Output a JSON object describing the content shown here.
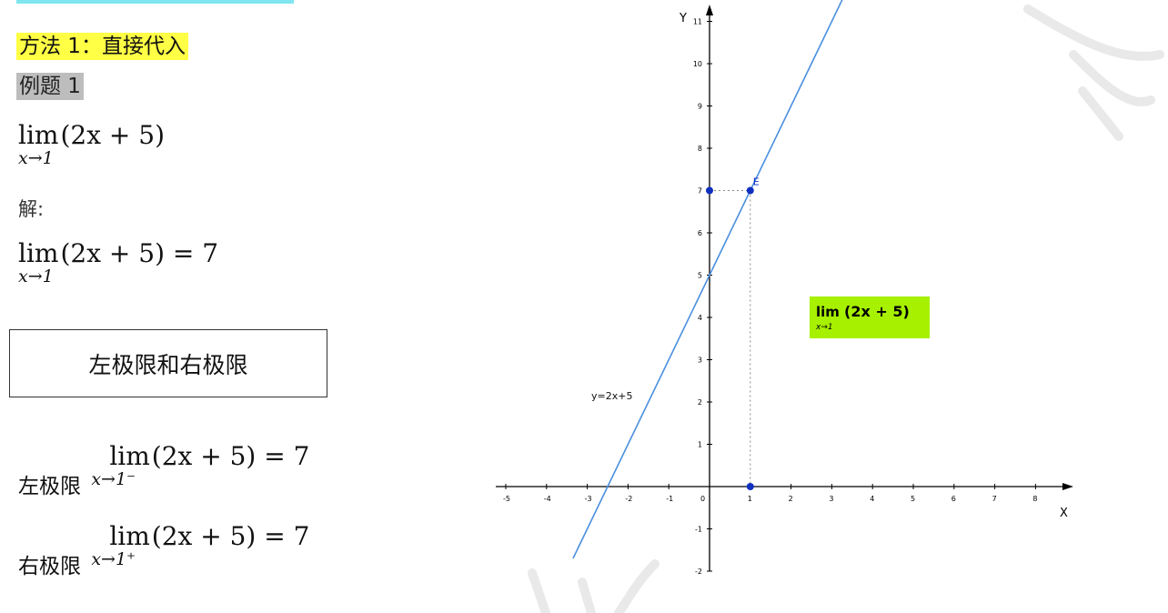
{
  "method_title": "方法 1：直接代入",
  "example_label": "例题 1",
  "problem": {
    "lim": "lim",
    "sub": "x→1",
    "expr": "(2x + 5)"
  },
  "solution_label": "解:",
  "answer": {
    "lim": "lim",
    "sub": "x→1",
    "expr": "(2x + 5) = 7"
  },
  "box_title": "左极限和右极限",
  "left_limit": {
    "label": "左极限",
    "lim": "lim",
    "sub": "x→1⁻",
    "expr": "(2x + 5) = 7"
  },
  "right_limit": {
    "label": "右极限",
    "lim": "lim",
    "sub": "x→1⁺",
    "expr": "(2x + 5) = 7"
  },
  "graph": {
    "x_axis_label": "X",
    "y_axis_label": "Y",
    "line_label": "y=2x+5",
    "point_label": "E",
    "x_ticks": [
      "-5",
      "-4",
      "-3",
      "-2",
      "-1",
      "0",
      "1",
      "2",
      "3",
      "4",
      "5",
      "6",
      "7",
      "8"
    ],
    "y_ticks": [
      "-2",
      "-1",
      "1",
      "2",
      "3",
      "4",
      "5",
      "6",
      "7",
      "8",
      "9",
      "10",
      "11"
    ],
    "line_color": "#4a8fe0",
    "point_color": "#1030c0",
    "badge_color": "#a6f000",
    "badge": {
      "lim": "lim",
      "sub": "x→1",
      "expr": "(2x + 5)"
    }
  }
}
